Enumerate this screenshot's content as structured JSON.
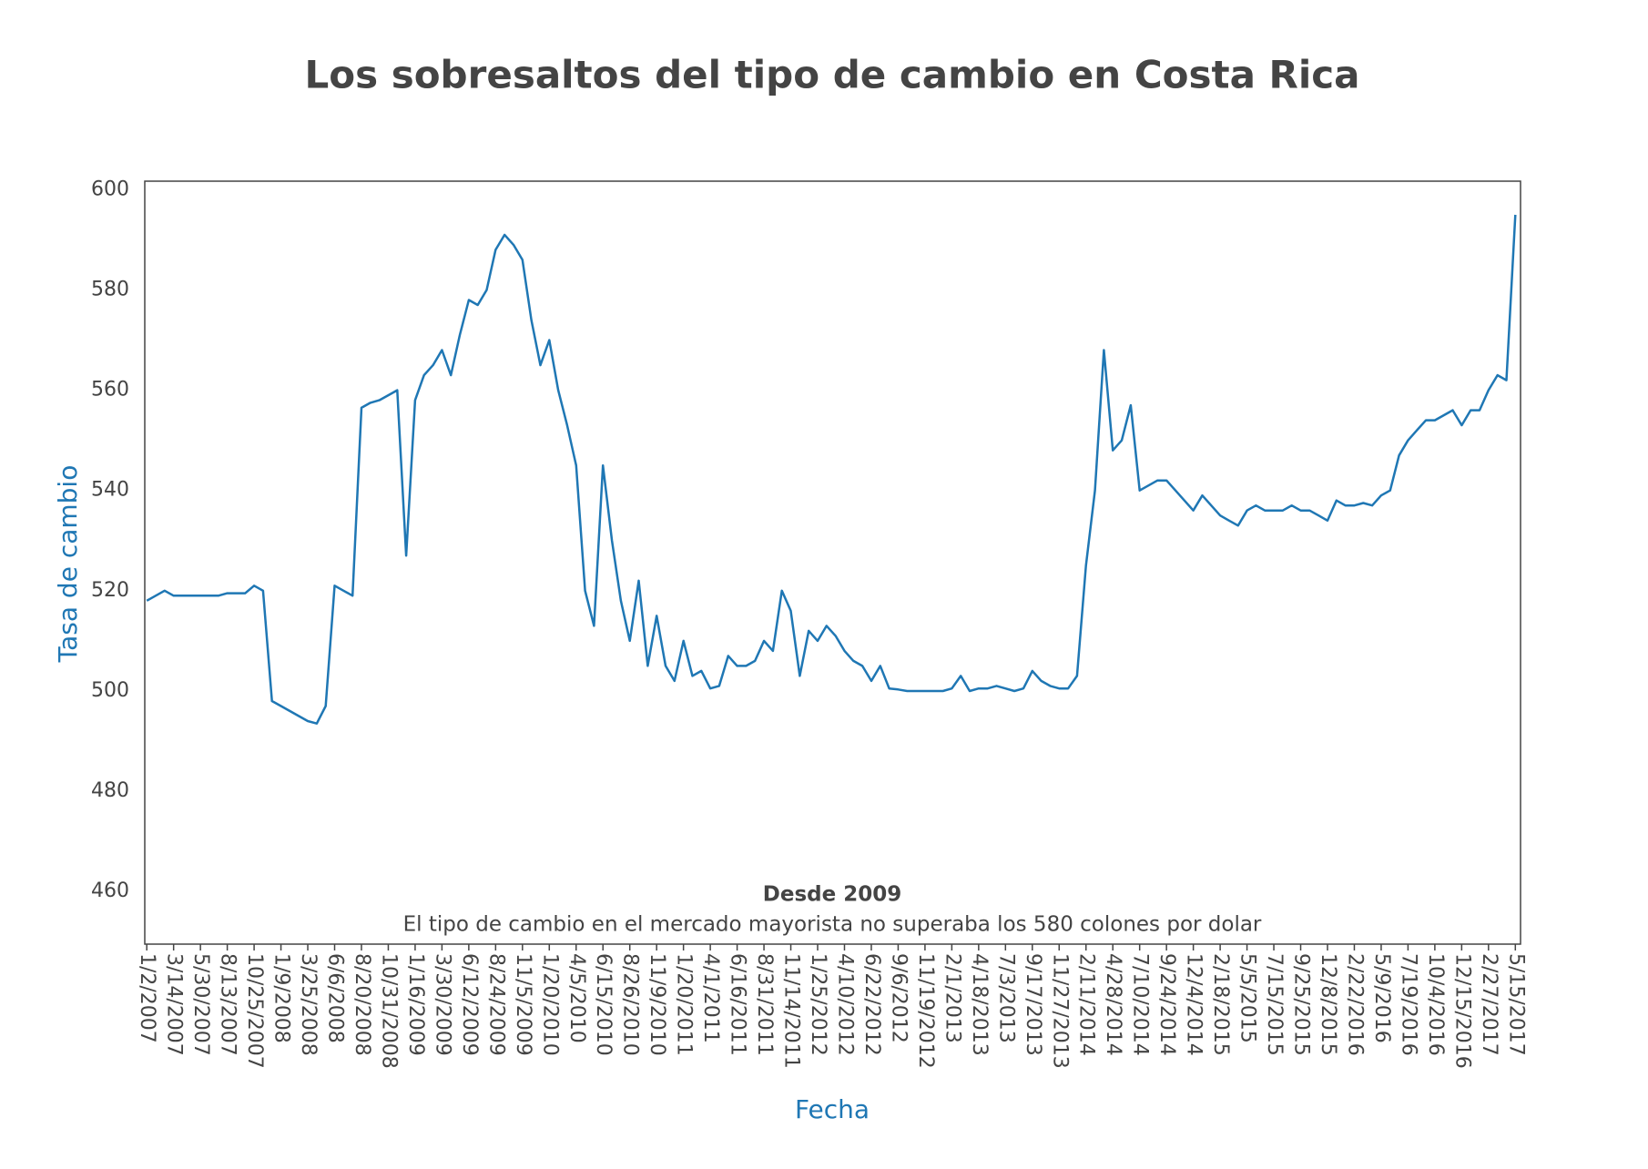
{
  "chart_data": {
    "type": "line",
    "title": "Los sobresaltos del tipo de cambio en Costa Rica",
    "x_label": "Fecha",
    "y_label": "Tasa de cambio",
    "annotation_title": "Desde 2009",
    "annotation_text": "El tipo de cambio en el mercado mayorista no superaba los 580 colones por dolar",
    "color": "#1f77b4",
    "grid": false,
    "ylim": [
      449.5,
      601.7
    ],
    "yticks": [
      460,
      480,
      500,
      520,
      540,
      560,
      580,
      600
    ],
    "categories": [
      "1/2/2007",
      null,
      null,
      "3/14/2007",
      null,
      null,
      "5/30/2007",
      null,
      null,
      "8/13/2007",
      null,
      null,
      "10/25/2007",
      null,
      null,
      "1/9/2008",
      null,
      null,
      "3/25/2008",
      null,
      null,
      "6/6/2008",
      null,
      null,
      "8/20/2008",
      null,
      null,
      "10/31/2008",
      null,
      null,
      "1/16/2009",
      null,
      null,
      "3/30/2009",
      null,
      null,
      "6/12/2009",
      null,
      null,
      "8/24/2009",
      null,
      null,
      "11/5/2009",
      null,
      null,
      "1/20/2010",
      null,
      null,
      "4/5/2010",
      null,
      null,
      "6/15/2010",
      null,
      null,
      "8/26/2010",
      null,
      null,
      "11/9/2010",
      null,
      null,
      "1/20/2011",
      null,
      null,
      "4/1/2011",
      null,
      null,
      "6/16/2011",
      null,
      null,
      "8/31/2011",
      null,
      null,
      "11/14/2011",
      null,
      null,
      "1/25/2012",
      null,
      null,
      "4/10/2012",
      null,
      null,
      "6/22/2012",
      null,
      null,
      "9/6/2012",
      null,
      null,
      "11/19/2012",
      null,
      null,
      "2/1/2013",
      null,
      null,
      "4/18/2013",
      null,
      null,
      "7/3/2013",
      null,
      null,
      "9/17/2013",
      null,
      null,
      "11/27/2013",
      null,
      null,
      "2/11/2014",
      null,
      null,
      "4/28/2014",
      null,
      null,
      "7/10/2014",
      null,
      null,
      "9/24/2014",
      null,
      null,
      "12/4/2014",
      null,
      null,
      "2/18/2015",
      null,
      null,
      "5/5/2015",
      null,
      null,
      "7/15/2015",
      null,
      null,
      "9/25/2015",
      null,
      null,
      "12/8/2015",
      null,
      null,
      "2/22/2016",
      null,
      null,
      "5/9/2016",
      null,
      null,
      "7/19/2016",
      null,
      null,
      "10/4/2016",
      null,
      null,
      "12/15/2016",
      null,
      null,
      "2/27/2017",
      null,
      null,
      "5/15/2017"
    ],
    "values": [
      518,
      519,
      520,
      519,
      519,
      519,
      519,
      519,
      519,
      519.5,
      519.5,
      519.5,
      521,
      520,
      498,
      497,
      496,
      495,
      494,
      493.5,
      497,
      521,
      520,
      519,
      556.5,
      557.5,
      558,
      559,
      560,
      527,
      558,
      563,
      565,
      568,
      563,
      571,
      578,
      577,
      580,
      588,
      591,
      589,
      586,
      574,
      565,
      570,
      560,
      553,
      545,
      520,
      513,
      545,
      530,
      518,
      510,
      522,
      505,
      515,
      505,
      502,
      510,
      503,
      504,
      500.5,
      501,
      507,
      505,
      505,
      506,
      510,
      508,
      520,
      516,
      503,
      512,
      510,
      513,
      511,
      508,
      506,
      505,
      502,
      505,
      500.5,
      500.3,
      500,
      500,
      500,
      500,
      500,
      500.5,
      503,
      500,
      500.5,
      500.5,
      501,
      500.5,
      500,
      500.5,
      504,
      502,
      501,
      500.5,
      500.5,
      503,
      525,
      540,
      568,
      548,
      550,
      557,
      540,
      541,
      542,
      542,
      540,
      538,
      536,
      539,
      537,
      535,
      534,
      533,
      536,
      537,
      536,
      536,
      536,
      537,
      536,
      536,
      535,
      534,
      538,
      537,
      537,
      537.5,
      537,
      539,
      540,
      547,
      550,
      552,
      554,
      554,
      555,
      556,
      553,
      556,
      556,
      560,
      563,
      562,
      595
    ]
  }
}
